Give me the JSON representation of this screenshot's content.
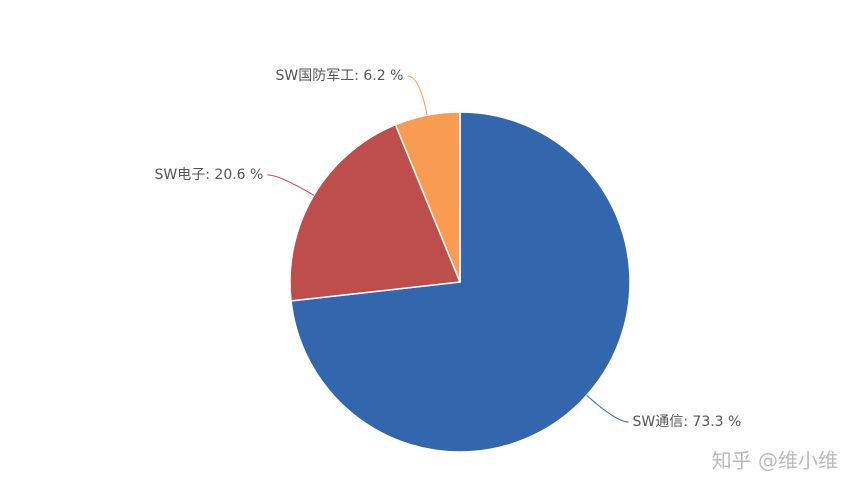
{
  "chart_data": {
    "type": "pie",
    "values": [
      73.3,
      20.6,
      6.2
    ],
    "value_labels": [
      "SW通信: 73.3 %",
      "SW电子: 20.6 %",
      "SW国防军工: 6.2 %"
    ],
    "colors": [
      "#3266ad",
      "#bd4e4c",
      "#f79c50"
    ]
  },
  "watermark": "知乎 @维小维"
}
